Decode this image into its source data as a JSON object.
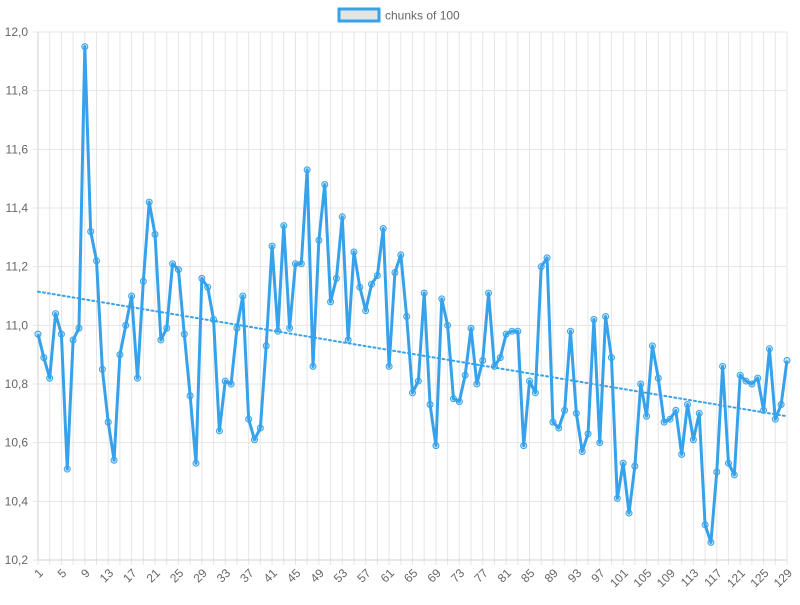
{
  "chart_data": {
    "type": "line",
    "legend": {
      "label": "chunks of 100",
      "placement": "top-center"
    },
    "series": [
      {
        "name": "chunks of 100",
        "color": "#36a2eb",
        "values": [
          10.97,
          10.89,
          10.82,
          11.04,
          10.97,
          10.51,
          10.95,
          10.99,
          11.95,
          11.32,
          11.22,
          10.85,
          10.67,
          10.54,
          10.9,
          11.0,
          11.1,
          10.82,
          11.15,
          11.42,
          11.31,
          10.95,
          10.99,
          11.21,
          11.19,
          10.97,
          10.76,
          10.53,
          11.16,
          11.13,
          11.02,
          10.64,
          10.81,
          10.8,
          10.99,
          11.1,
          10.68,
          10.61,
          10.65,
          10.93,
          11.27,
          10.98,
          11.34,
          10.99,
          11.21,
          11.21,
          11.53,
          10.86,
          11.29,
          11.48,
          11.08,
          11.16,
          11.37,
          10.95,
          11.25,
          11.13,
          11.05,
          11.14,
          11.17,
          11.33,
          10.86,
          11.18,
          11.24,
          11.03,
          10.77,
          10.81,
          11.11,
          10.73,
          10.59,
          11.09,
          11.0,
          10.75,
          10.74,
          10.83,
          10.99,
          10.8,
          10.88,
          11.11,
          10.86,
          10.89,
          10.97,
          10.98,
          10.98,
          10.59,
          10.81,
          10.77,
          11.2,
          11.23,
          10.67,
          10.65,
          10.71,
          10.98,
          10.7,
          10.57,
          10.63,
          11.02,
          10.6,
          11.03,
          10.89,
          10.41,
          10.53,
          10.36,
          10.52,
          10.8,
          10.69,
          10.93,
          10.82,
          10.67,
          10.68,
          10.71,
          10.56,
          10.73,
          10.61,
          10.7,
          10.32,
          10.26,
          10.5,
          10.86,
          10.53,
          10.49,
          10.83,
          10.81,
          10.8,
          10.82,
          10.71,
          10.92,
          10.68,
          10.73,
          10.88
        ]
      }
    ],
    "trendline": {
      "style": "dotted",
      "color": "#36a2eb",
      "start": 11.115,
      "end": 10.69
    },
    "x": {
      "start": 1,
      "end": 129,
      "tick_labels": [
        "1",
        "5",
        "9",
        "13",
        "17",
        "21",
        "25",
        "29",
        "33",
        "37",
        "41",
        "45",
        "49",
        "53",
        "57",
        "61",
        "65",
        "69",
        "73",
        "77",
        "81",
        "85",
        "89",
        "93",
        "97",
        "101",
        "105",
        "109",
        "113",
        "117",
        "121",
        "125",
        "129"
      ]
    },
    "y": {
      "ylim": [
        10.2,
        12.0
      ],
      "tick_labels": [
        "12,0",
        "11,8",
        "11,6",
        "11,4",
        "11,2",
        "11,0",
        "10,8",
        "10,6",
        "10,4",
        "10,2"
      ]
    },
    "grid": true
  }
}
